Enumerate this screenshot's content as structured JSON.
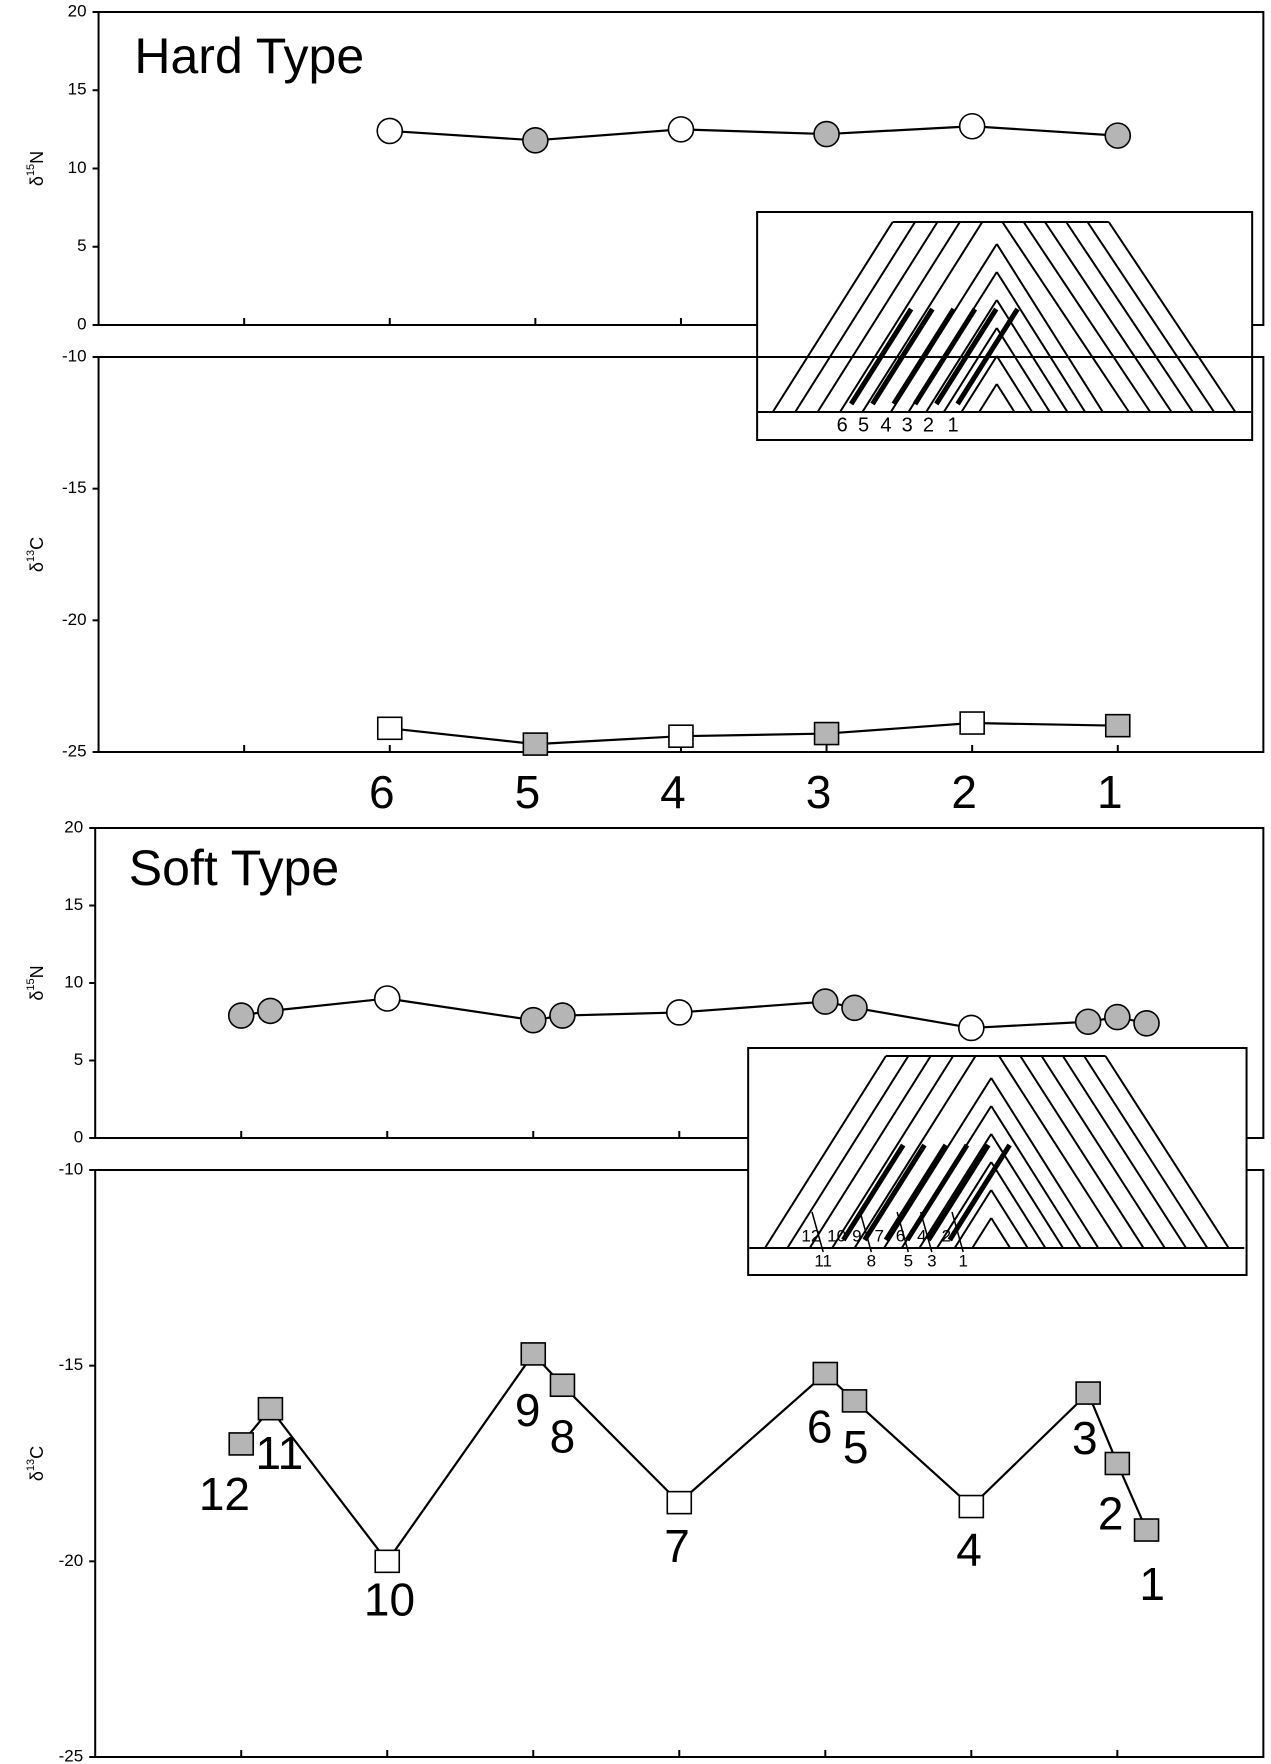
{
  "chart_data": [
    {
      "type": "line",
      "title": "Hard Type",
      "y_label": {
        "prefix": "δ",
        "sup": "15",
        "base": "N"
      },
      "xlim": [
        -1,
        7
      ],
      "xticks": [
        0,
        1,
        2,
        3,
        4,
        5,
        6
      ],
      "ylim": [
        0,
        20
      ],
      "yticks": [
        0,
        5,
        10,
        15,
        20
      ],
      "series": [
        {
          "x": [
            1,
            2,
            3,
            4,
            5,
            6
          ],
          "values": [
            12.4,
            11.8,
            12.5,
            12.2,
            12.7,
            12.1
          ],
          "marker": "circle",
          "filled": [
            false,
            true,
            false,
            true,
            false,
            true
          ]
        }
      ],
      "inset": {
        "labels": [
          "6",
          "5",
          "4",
          "3",
          "2",
          "1"
        ]
      }
    },
    {
      "type": "line",
      "y_label": {
        "prefix": "δ",
        "sup": "13",
        "base": "C"
      },
      "xlim": [
        -1,
        7
      ],
      "xticks": [
        0,
        1,
        2,
        3,
        4,
        5,
        6
      ],
      "ylim": [
        -25,
        -10
      ],
      "yticks": [
        -25,
        -20,
        -15,
        -10
      ],
      "series": [
        {
          "x": [
            1,
            2,
            3,
            4,
            5,
            6
          ],
          "values": [
            -24.1,
            -24.7,
            -24.4,
            -24.3,
            -23.9,
            -24.0
          ],
          "marker": "square",
          "filled": [
            false,
            true,
            false,
            true,
            false,
            true
          ]
        }
      ],
      "point_labels": [
        "6",
        "5",
        "4",
        "3",
        "2",
        "1"
      ]
    },
    {
      "type": "line",
      "title": "Soft Type",
      "y_label": {
        "prefix": "δ",
        "sup": "15",
        "base": "N"
      },
      "xlim": [
        -1,
        7
      ],
      "xticks": [
        0,
        1,
        2,
        3,
        4,
        5,
        6
      ],
      "ylim": [
        0,
        20
      ],
      "yticks": [
        0,
        5,
        10,
        15,
        20
      ],
      "series": [
        {
          "x": [
            0,
            0.2,
            1,
            2,
            2.2,
            3,
            4,
            4.2,
            5,
            5.8,
            6,
            6.2
          ],
          "values": [
            7.9,
            8.2,
            9.0,
            7.6,
            7.9,
            8.1,
            8.8,
            8.4,
            7.1,
            7.5,
            7.8,
            7.4
          ],
          "marker": "circle",
          "filled": [
            true,
            true,
            false,
            true,
            true,
            false,
            true,
            true,
            false,
            true,
            true,
            true
          ]
        }
      ],
      "inset": {
        "labels_top": [
          "12",
          "10",
          "9",
          "7",
          "6",
          "4",
          "2"
        ],
        "labels_bottom": [
          "11",
          "8",
          "5",
          "3",
          "1"
        ]
      }
    },
    {
      "type": "line",
      "y_label": {
        "prefix": "δ",
        "sup": "13",
        "base": "C"
      },
      "xlim": [
        -1,
        7
      ],
      "xticks": [
        0,
        1,
        2,
        3,
        4,
        5,
        6
      ],
      "ylim": [
        -25,
        -10
      ],
      "yticks": [
        -25,
        -20,
        -15,
        -10
      ],
      "series": [
        {
          "x": [
            0,
            0.2,
            1,
            2,
            2.2,
            3,
            4,
            4.2,
            5,
            5.8,
            6,
            6.2
          ],
          "values": [
            -17.0,
            -16.1,
            -20.0,
            -14.7,
            -15.5,
            -18.5,
            -15.2,
            -15.9,
            -18.6,
            -15.7,
            -17.5,
            -19.2
          ],
          "marker": "square",
          "filled": [
            true,
            true,
            false,
            true,
            true,
            false,
            true,
            true,
            false,
            true,
            true,
            true
          ]
        }
      ],
      "point_labels": [
        "12",
        "11",
        "10",
        "9",
        "8",
        "7",
        "6",
        "5",
        "4",
        "3",
        "2",
        "1"
      ]
    }
  ]
}
